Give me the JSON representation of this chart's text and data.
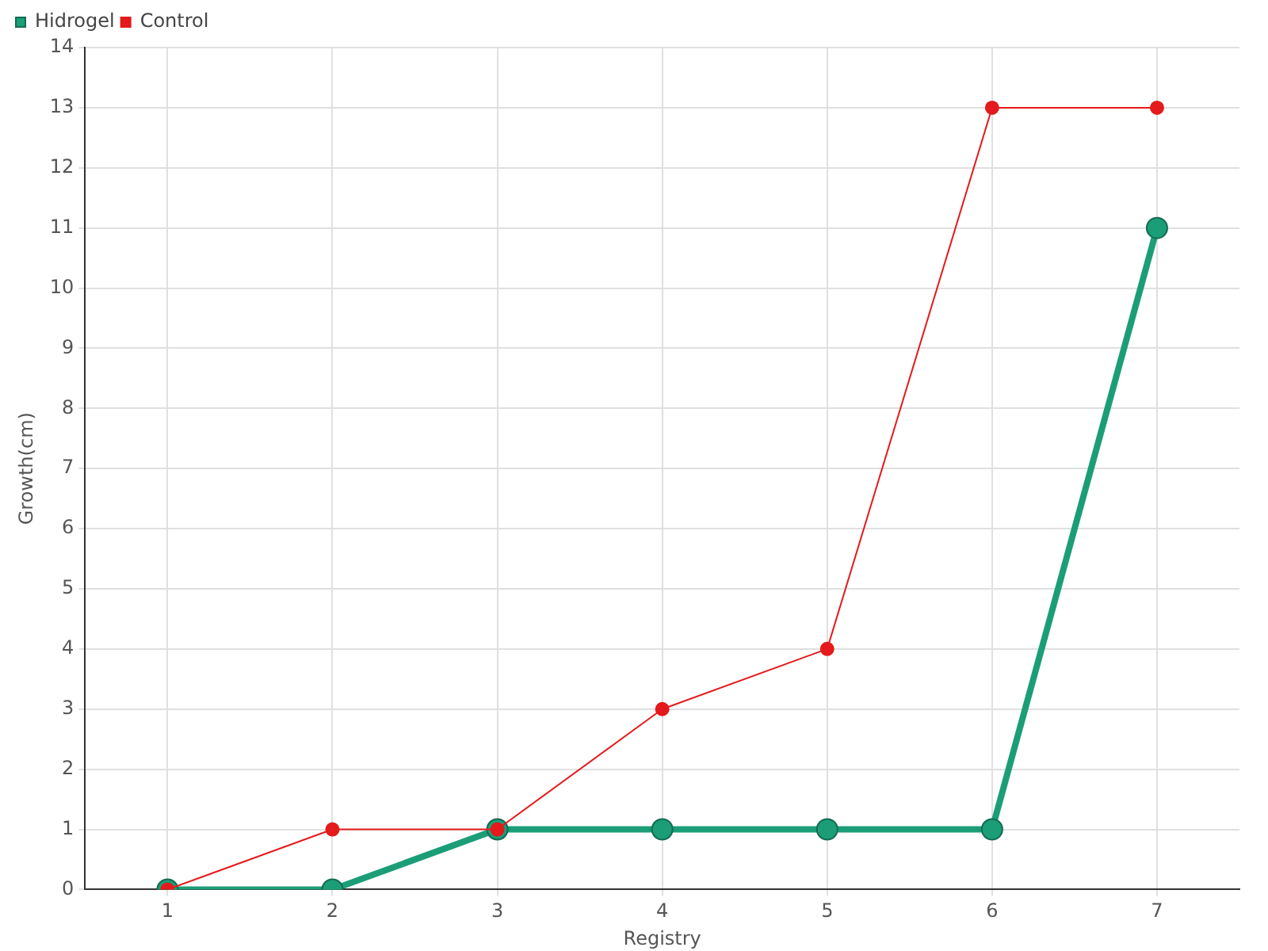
{
  "chart_data": {
    "type": "line",
    "xlabel": "Registry",
    "ylabel": "Growth(cm)",
    "categories": [
      "1",
      "2",
      "3",
      "4",
      "5",
      "6",
      "7"
    ],
    "series": [
      {
        "name": "Hidrogel",
        "color": "#1b9e77",
        "values": [
          0,
          0,
          1,
          1,
          1,
          1,
          11
        ]
      },
      {
        "name": "Control",
        "color": "#e41a1c",
        "values": [
          0,
          1,
          1,
          3,
          4,
          13,
          13
        ]
      }
    ],
    "ylim": [
      0,
      14
    ],
    "yticks": [
      0,
      1,
      2,
      3,
      4,
      5,
      6,
      7,
      8,
      9,
      10,
      11,
      12,
      13,
      14
    ],
    "grid": true,
    "legend": "top left",
    "marker": "circle",
    "line_style": "solid"
  }
}
